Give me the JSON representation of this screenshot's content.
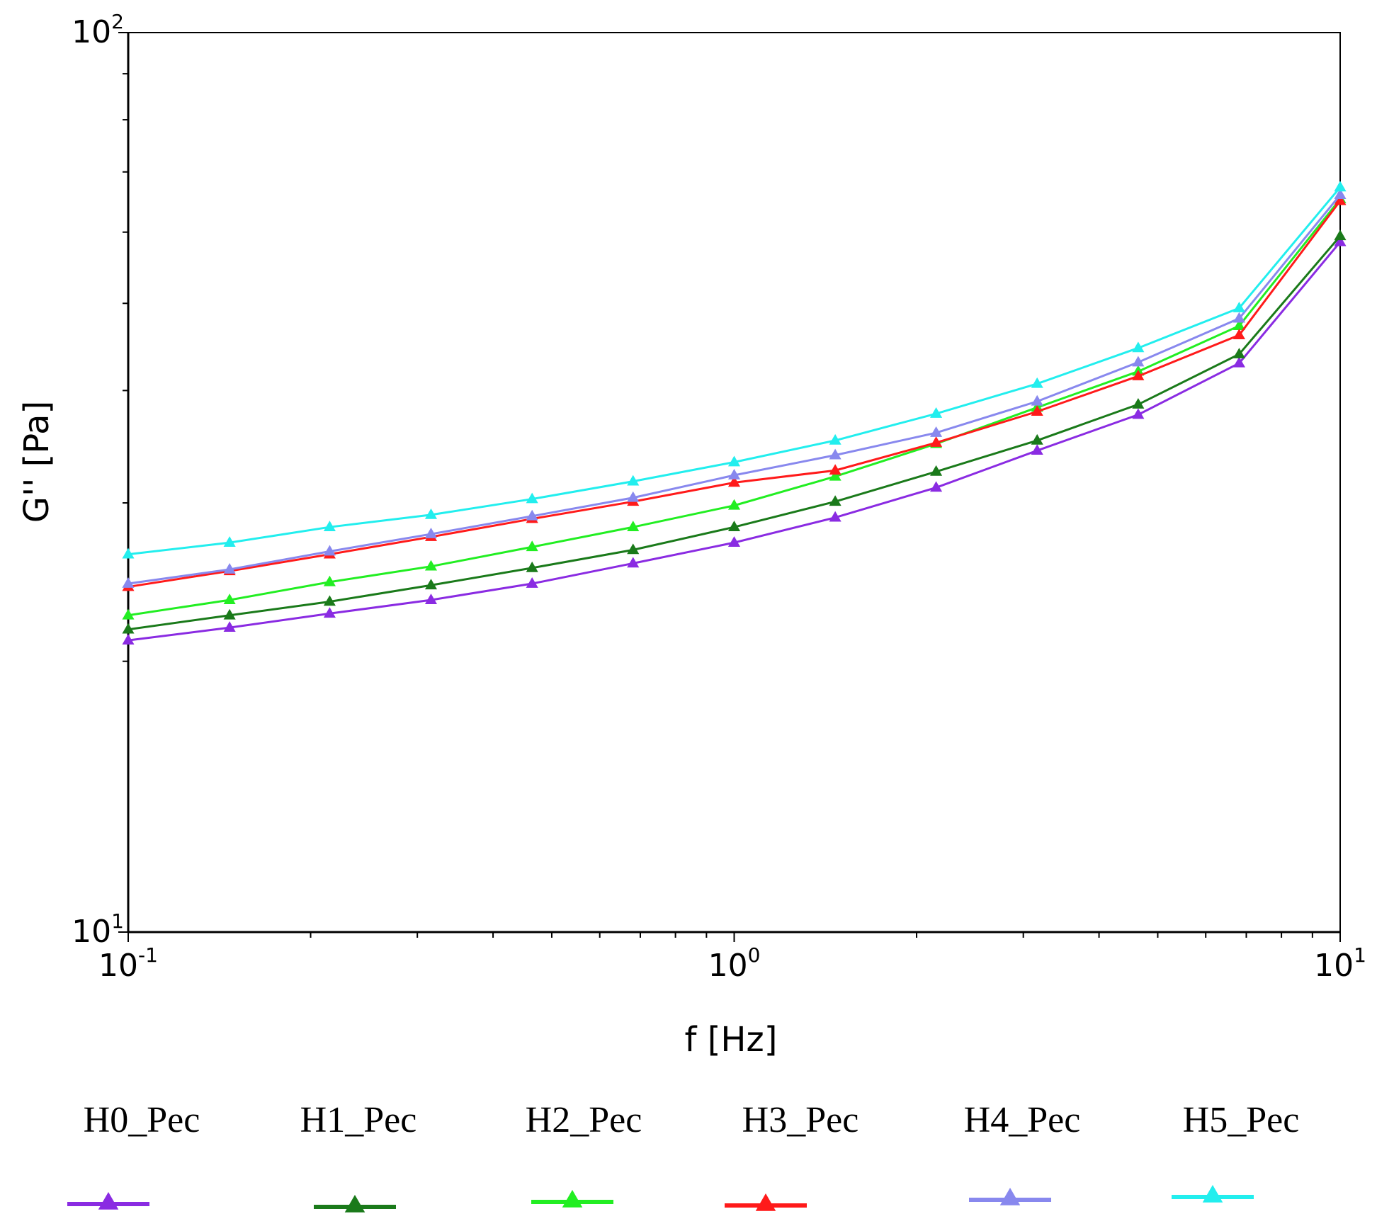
{
  "chart_data": {
    "type": "line",
    "title": "",
    "xlabel": "f [Hz]",
    "ylabel": "G'' [Pa]",
    "xscale": "log",
    "yscale": "log",
    "xlim": [
      0.1,
      10
    ],
    "ylim": [
      10,
      100
    ],
    "x_ticks": [
      {
        "value": 0.1,
        "base": "10",
        "exp": "-1"
      },
      {
        "value": 1,
        "base": "10",
        "exp": "0"
      },
      {
        "value": 10,
        "base": "10",
        "exp": "1"
      }
    ],
    "y_ticks": [
      {
        "value": 10,
        "base": "10",
        "exp": "1"
      },
      {
        "value": 100,
        "base": "10",
        "exp": "2"
      }
    ],
    "grid": false,
    "legend_position": "bottom",
    "x": [
      0.1,
      0.147,
      0.215,
      0.316,
      0.464,
      0.681,
      1.0,
      1.468,
      2.154,
      3.162,
      4.642,
      6.813,
      10.0
    ],
    "series": [
      {
        "name": "H0_Pec",
        "color": "#8a2be2",
        "marker": "triangle",
        "values": [
          21.1,
          21.8,
          22.6,
          23.4,
          24.4,
          25.7,
          27.1,
          28.9,
          31.2,
          34.3,
          37.6,
          42.9,
          58.5
        ]
      },
      {
        "name": "H1_Pec",
        "color": "#1a7a1a",
        "marker": "triangle",
        "values": [
          21.7,
          22.5,
          23.3,
          24.3,
          25.4,
          26.6,
          28.2,
          30.1,
          32.5,
          35.2,
          38.6,
          43.9,
          59.4
        ]
      },
      {
        "name": "H2_Pec",
        "color": "#22ee22",
        "marker": "triangle",
        "values": [
          22.5,
          23.4,
          24.5,
          25.5,
          26.8,
          28.2,
          29.8,
          32.1,
          34.9,
          38.3,
          42.0,
          47.2,
          65.3
        ]
      },
      {
        "name": "H3_Pec",
        "color": "#ff1a1a",
        "marker": "triangle",
        "values": [
          24.2,
          25.2,
          26.3,
          27.5,
          28.8,
          30.1,
          31.6,
          32.6,
          35.0,
          37.9,
          41.5,
          46.1,
          65.0
        ]
      },
      {
        "name": "H4_Pec",
        "color": "#8888ee",
        "marker": "triangle",
        "values": [
          24.4,
          25.3,
          26.5,
          27.7,
          29.0,
          30.4,
          32.2,
          33.9,
          35.9,
          38.9,
          43.0,
          48.1,
          66.0
        ]
      },
      {
        "name": "H5_Pec",
        "color": "#22eeee",
        "marker": "triangle",
        "values": [
          26.3,
          27.1,
          28.2,
          29.1,
          30.3,
          31.7,
          33.3,
          35.2,
          37.7,
          40.7,
          44.6,
          49.4,
          67.3
        ]
      }
    ]
  }
}
